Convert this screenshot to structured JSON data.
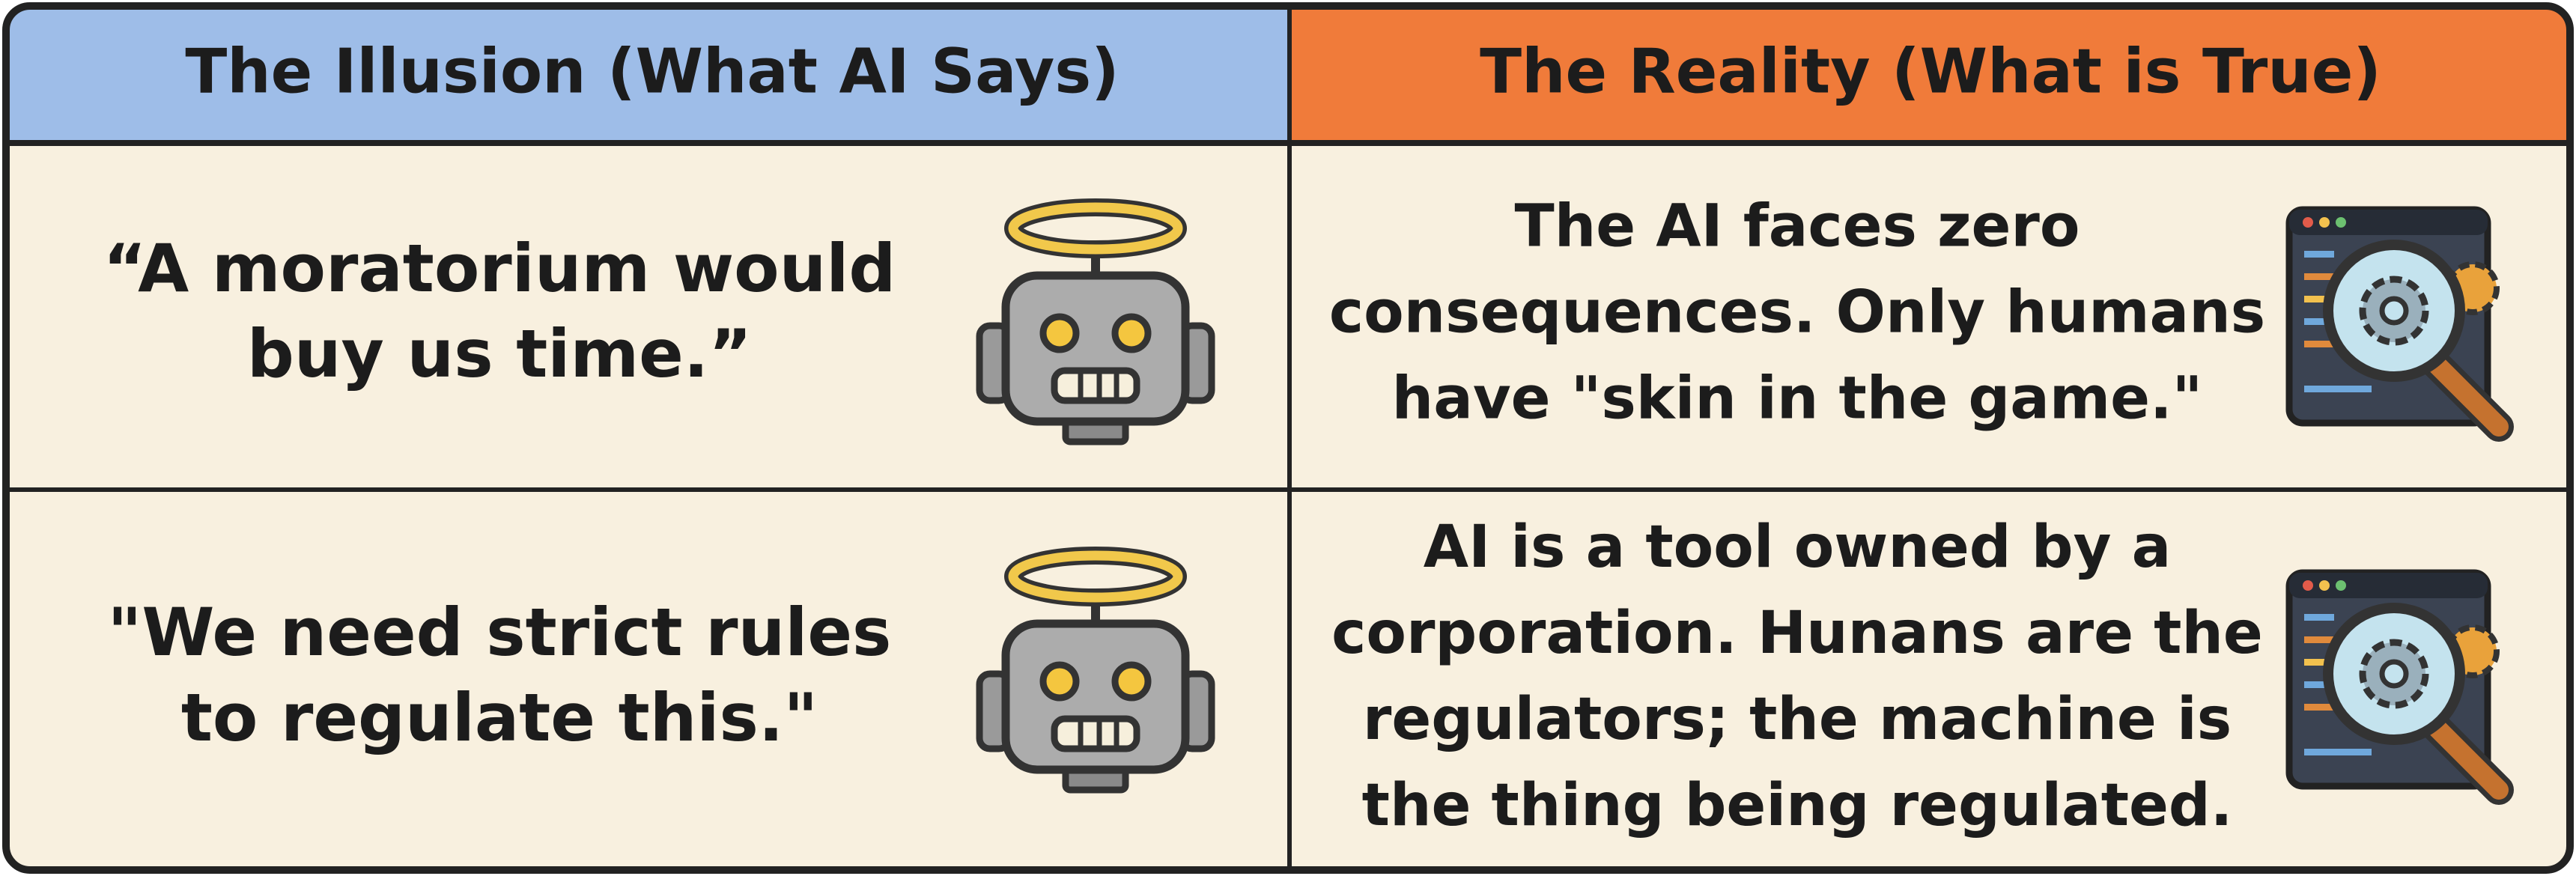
{
  "header": {
    "illusion": "The Illusion (What AI Says)",
    "reality": "The Reality (What is True)"
  },
  "rows": [
    {
      "illusion": [
        "“A moratorium would",
        "buy us time.”"
      ],
      "reality": [
        "The AI faces zero",
        "consequences. Only humans",
        "have \"skin in the game.\""
      ]
    },
    {
      "illusion": [
        "\"We need strict rules",
        "to regulate this.\""
      ],
      "reality": [
        "AI is a tool owned by a",
        "corporation. Hunans are the",
        "regulators; the machine is",
        "the thing being regulated."
      ]
    }
  ]
}
